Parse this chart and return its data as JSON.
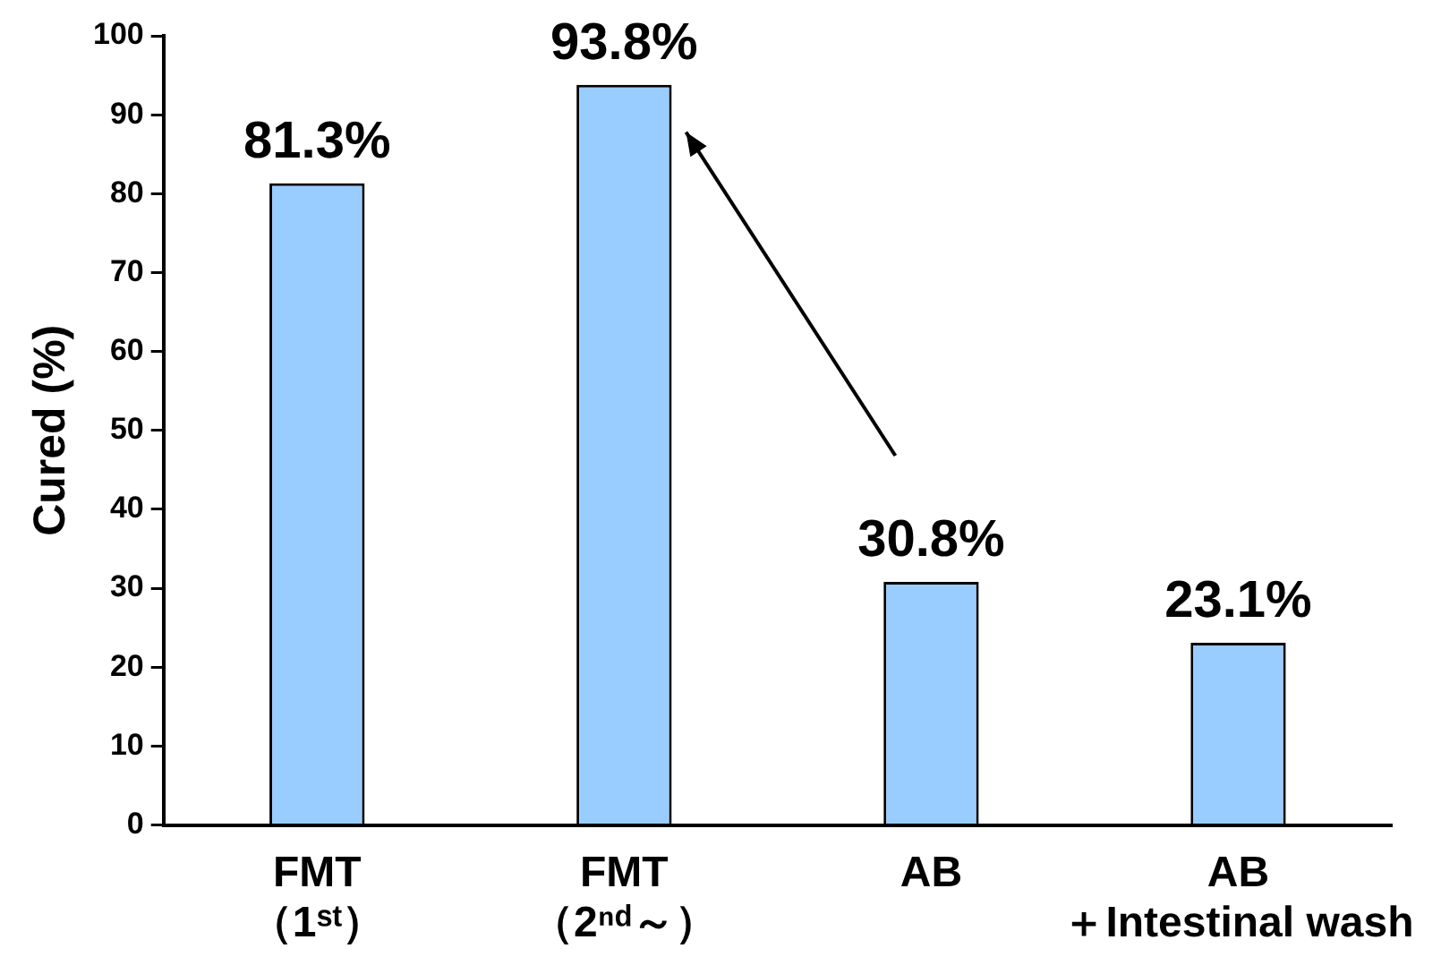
{
  "chart_data": {
    "type": "bar",
    "ylabel": "Cured (%)",
    "categories": [
      "FMT\n（1ˢᵗ）",
      "FMT\n（2ⁿᵈ～）",
      "AB",
      "AB\n＋Intestinal wash"
    ],
    "values": [
      81.3,
      93.8,
      30.8,
      23.1
    ],
    "value_labels": [
      "81.3%",
      "93.8%",
      "30.8%",
      "23.1%"
    ],
    "color": "#99ccff",
    "ylim": [
      0,
      100
    ],
    "yticks": [
      0,
      10,
      20,
      30,
      40,
      50,
      60,
      70,
      80,
      90,
      100
    ],
    "grid": false,
    "legend": false
  }
}
